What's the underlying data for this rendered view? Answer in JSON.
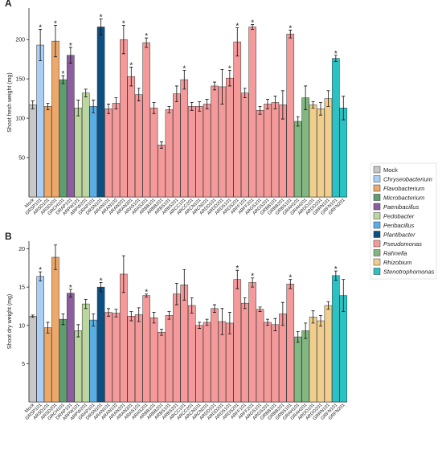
{
  "chart_data": [
    {
      "type": "bar",
      "panel": "A",
      "y_label": "Shoot fresh weight (mg)",
      "categories": [
        "Mock",
        "GRSP101",
        "ARSD101",
        "ARSD201",
        "GRCH101",
        "DRAP101",
        "ARPW101",
        "ARPW201",
        "GRAP101",
        "DRSN101",
        "ARAN101",
        "ARAN102",
        "ARAN201",
        "ARAN301",
        "ARAS101",
        "ARAS201",
        "ARBB101",
        "ARBB201",
        "ARBS101",
        "ARBS201",
        "ARCC101",
        "ARCC201",
        "ARCN101",
        "ARCN201",
        "ARDD101",
        "ARDD201",
        "ARDS101",
        "ARDS201",
        "ARFF101",
        "ARFF201",
        "ARGS101",
        "ARGS201",
        "GRBB101",
        "GRBB201",
        "GRBS101",
        "GRAH101",
        "GRAH201",
        "ARDO101",
        "ARDO201",
        "GRRN101",
        "GRFN101",
        "GRFN201"
      ],
      "values": [
        117,
        193,
        115,
        198,
        149,
        180,
        113,
        132,
        115,
        216,
        112,
        119,
        200,
        153,
        130,
        196,
        113,
        66,
        111,
        131,
        149,
        115,
        115,
        118,
        141,
        140,
        151,
        197,
        132,
        216,
        110,
        118,
        120,
        117,
        207,
        96,
        126,
        117,
        112,
        125,
        176,
        113
      ],
      "errors": [
        5,
        20,
        4,
        20,
        5,
        10,
        10,
        5,
        8,
        10,
        6,
        7,
        18,
        12,
        8,
        6,
        7,
        4,
        4,
        10,
        12,
        5,
        6,
        6,
        5,
        22,
        10,
        18,
        6,
        3,
        5,
        6,
        8,
        18,
        5,
        6,
        15,
        4,
        8,
        10,
        4,
        15
      ],
      "significance": [
        null,
        "*",
        null,
        "*",
        "*",
        "*",
        null,
        null,
        null,
        "*",
        null,
        null,
        "*",
        "*",
        null,
        "*",
        null,
        null,
        null,
        null,
        "*",
        null,
        null,
        null,
        null,
        null,
        "*",
        "*",
        null,
        "*",
        null,
        null,
        null,
        null,
        "*",
        null,
        null,
        null,
        null,
        null,
        "*",
        null
      ],
      "colors": [
        "#c8c8c8",
        "#a9cff4",
        "#eda86a",
        "#eda86a",
        "#5e9e70",
        "#8e5d9f",
        "#bcd69f",
        "#bcd69f",
        "#5aaee6",
        "#0d4f80",
        "#f59a9a",
        "#f59a9a",
        "#f59a9a",
        "#f59a9a",
        "#f59a9a",
        "#f59a9a",
        "#f59a9a",
        "#f59a9a",
        "#f59a9a",
        "#f59a9a",
        "#f59a9a",
        "#f59a9a",
        "#f59a9a",
        "#f59a9a",
        "#f59a9a",
        "#f59a9a",
        "#f59a9a",
        "#f59a9a",
        "#f59a9a",
        "#f59a9a",
        "#f59a9a",
        "#f59a9a",
        "#f59a9a",
        "#f59a9a",
        "#f59a9a",
        "#82b682",
        "#82b682",
        "#f0cf8e",
        "#f0cf8e",
        "#f0cf8e",
        "#2ac2c2",
        "#2ac2c2"
      ],
      "ylim": [
        0,
        240
      ],
      "yticks": [
        50,
        100,
        150,
        200
      ]
    },
    {
      "type": "bar",
      "panel": "B",
      "y_label": "Shoot dry weight (mg)",
      "categories": [
        "Mock",
        "GRSP101",
        "ARSD101",
        "ARSD201",
        "GRCH101",
        "DRAP101",
        "ARPW101",
        "ARPW201",
        "GRAP101",
        "DRSN101",
        "ARAN101",
        "ARAN102",
        "ARAN201",
        "ARAN301",
        "ARAS101",
        "ARAS201",
        "ARBB101",
        "ARBB201",
        "ARBS101",
        "ARBS201",
        "ARCC101",
        "ARCC201",
        "ARCN101",
        "ARCN201",
        "ARDD101",
        "ARDD201",
        "ARDS101",
        "ARDS201",
        "ARFF101",
        "ARFF201",
        "ARGS101",
        "ARGS201",
        "GRBB101",
        "GRBB201",
        "GRBS101",
        "GRAH101",
        "GRAH201",
        "ARDO101",
        "ARDO201",
        "GRRN101",
        "GRFN101",
        "GRFN201"
      ],
      "values": [
        11.2,
        16.4,
        9.7,
        18.9,
        10.8,
        14.2,
        9.3,
        12.8,
        10.7,
        15.0,
        11.7,
        11.6,
        16.7,
        11.2,
        11.4,
        13.9,
        11.0,
        9.1,
        11.3,
        14.1,
        15.3,
        12.6,
        10.0,
        10.4,
        12.2,
        10.5,
        10.3,
        16.0,
        12.9,
        15.6,
        12.1,
        10.4,
        10.1,
        11.5,
        15.4,
        8.5,
        9.3,
        11.1,
        10.6,
        12.6,
        16.5,
        13.9
      ],
      "errors": [
        0.15,
        0.6,
        0.7,
        1.6,
        0.7,
        0.5,
        0.8,
        0.6,
        0.8,
        0.6,
        0.5,
        0.5,
        2.4,
        0.6,
        0.9,
        0.2,
        0.7,
        0.4,
        0.5,
        1.4,
        2.0,
        1.0,
        0.4,
        0.4,
        0.5,
        1.7,
        1.4,
        1.2,
        0.7,
        0.6,
        0.3,
        0.4,
        0.8,
        1.5,
        0.6,
        0.7,
        1.0,
        0.8,
        0.7,
        0.5,
        0.6,
        2.1
      ],
      "significance": [
        null,
        "*",
        null,
        null,
        null,
        "*",
        null,
        null,
        null,
        "*",
        null,
        null,
        null,
        null,
        null,
        "*",
        null,
        null,
        null,
        null,
        null,
        null,
        null,
        null,
        null,
        null,
        null,
        "*",
        null,
        "*",
        null,
        null,
        null,
        null,
        "*",
        null,
        null,
        null,
        null,
        null,
        "*",
        null
      ],
      "colors": [
        "#c8c8c8",
        "#a9cff4",
        "#eda86a",
        "#eda86a",
        "#5e9e70",
        "#8e5d9f",
        "#bcd69f",
        "#bcd69f",
        "#5aaee6",
        "#0d4f80",
        "#f59a9a",
        "#f59a9a",
        "#f59a9a",
        "#f59a9a",
        "#f59a9a",
        "#f59a9a",
        "#f59a9a",
        "#f59a9a",
        "#f59a9a",
        "#f59a9a",
        "#f59a9a",
        "#f59a9a",
        "#f59a9a",
        "#f59a9a",
        "#f59a9a",
        "#f59a9a",
        "#f59a9a",
        "#f59a9a",
        "#f59a9a",
        "#f59a9a",
        "#f59a9a",
        "#f59a9a",
        "#f59a9a",
        "#f59a9a",
        "#f59a9a",
        "#82b682",
        "#82b682",
        "#f0cf8e",
        "#f0cf8e",
        "#f0cf8e",
        "#2ac2c2",
        "#2ac2c2"
      ],
      "ylim": [
        0,
        21
      ],
      "yticks": [
        5,
        10,
        15,
        20
      ]
    }
  ],
  "legend": [
    {
      "name": "Mock",
      "color": "#c8c8c8"
    },
    {
      "name": "Chryseobacterium",
      "color": "#a9cff4"
    },
    {
      "name": "Flavobacterium",
      "color": "#eda86a"
    },
    {
      "name": "Microbacterium",
      "color": "#5e9e70"
    },
    {
      "name": "Paenibacillus",
      "color": "#8e5d9f"
    },
    {
      "name": "Pedobacter",
      "color": "#bcd69f"
    },
    {
      "name": "Peribacillus",
      "color": "#5aaee6"
    },
    {
      "name": "Plantibacter",
      "color": "#0d4f80"
    },
    {
      "name": "Pseudomonas",
      "color": "#f59a9a"
    },
    {
      "name": "Rahnella",
      "color": "#82b682"
    },
    {
      "name": "Rhizobium",
      "color": "#f0cf8e"
    },
    {
      "name": "Stenotrophomonas",
      "color": "#2ac2c2"
    }
  ]
}
